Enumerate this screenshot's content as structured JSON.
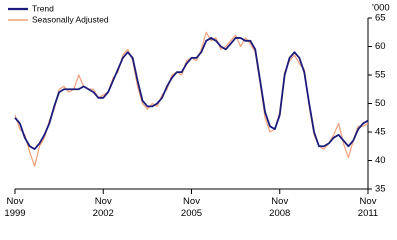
{
  "chart_data": {
    "type": "line",
    "unit_label": "'000",
    "x": [
      "1999-11",
      "2000-01",
      "2000-03",
      "2000-05",
      "2000-07",
      "2000-09",
      "2000-11",
      "2001-01",
      "2001-03",
      "2001-05",
      "2001-07",
      "2001-09",
      "2001-11",
      "2002-01",
      "2002-03",
      "2002-05",
      "2002-07",
      "2002-09",
      "2002-11",
      "2003-01",
      "2003-03",
      "2003-05",
      "2003-07",
      "2003-09",
      "2003-11",
      "2004-01",
      "2004-03",
      "2004-05",
      "2004-07",
      "2004-09",
      "2004-11",
      "2005-01",
      "2005-03",
      "2005-05",
      "2005-07",
      "2005-09",
      "2005-11",
      "2006-01",
      "2006-03",
      "2006-05",
      "2006-07",
      "2006-09",
      "2006-11",
      "2007-01",
      "2007-03",
      "2007-05",
      "2007-07",
      "2007-09",
      "2007-11",
      "2008-01",
      "2008-03",
      "2008-05",
      "2008-07",
      "2008-09",
      "2008-11",
      "2009-01",
      "2009-03",
      "2009-05",
      "2009-07",
      "2009-09",
      "2009-11",
      "2010-01",
      "2010-03",
      "2010-05",
      "2010-07",
      "2010-09",
      "2010-11",
      "2011-01",
      "2011-03",
      "2011-05",
      "2011-07",
      "2011-09",
      "2011-11"
    ],
    "series": [
      {
        "name": "Trend",
        "color": "#1c1c7c",
        "width": 1.8,
        "values": [
          47.5,
          46.5,
          44,
          42.5,
          42,
          43,
          44.5,
          46.5,
          49.5,
          52,
          52.5,
          52.5,
          52.5,
          52.5,
          53,
          52.5,
          52,
          51,
          51,
          52,
          54,
          56,
          58,
          59,
          58,
          54,
          50.5,
          49.5,
          49.5,
          50,
          51,
          53,
          54.5,
          55.5,
          55.5,
          57,
          58,
          58,
          59,
          61,
          61.5,
          61,
          60,
          59.5,
          60.5,
          61.5,
          61.5,
          61,
          61,
          59.5,
          54,
          48.5,
          46,
          45.5,
          48,
          55,
          58,
          59,
          58,
          55.5,
          50,
          45,
          42.5,
          42.5,
          43,
          44,
          44.5,
          43.5,
          42.5,
          43.5,
          45.5,
          46.5,
          47
        ]
      },
      {
        "name": "Seasonally Adjusted",
        "color": "#f4a07a",
        "width": 1.2,
        "values": [
          48,
          45.5,
          44.5,
          41.5,
          39,
          42.5,
          44,
          47,
          49,
          52.5,
          53,
          52,
          52.5,
          55,
          53,
          52.5,
          52.5,
          51,
          51.5,
          52,
          54.5,
          55.5,
          58.5,
          59.5,
          57.5,
          53,
          50,
          49,
          50,
          49.5,
          51.5,
          52.5,
          55,
          55.5,
          55,
          57.5,
          58,
          57.5,
          59.5,
          62.5,
          61,
          61.5,
          59.5,
          60,
          61,
          62,
          60,
          61.5,
          60.5,
          59,
          53.5,
          47.5,
          45,
          45.5,
          48.5,
          55.5,
          57.5,
          58.5,
          57,
          56,
          49.5,
          44.5,
          42.5,
          42,
          43,
          44.5,
          46.5,
          43,
          40.5,
          43.5,
          46,
          46,
          46.5
        ]
      }
    ],
    "xlim": [
      "1999-11",
      "2011-11"
    ],
    "xticks": [
      {
        "value": "1999-11",
        "label": "Nov 1999"
      },
      {
        "value": "2002-11",
        "label": "Nov 2002"
      },
      {
        "value": "2005-11",
        "label": "Nov 2005"
      },
      {
        "value": "2008-11",
        "label": "Nov 2008"
      },
      {
        "value": "2011-11",
        "label": "Nov 2011"
      }
    ],
    "ylim": [
      35,
      65
    ],
    "yticks": [
      35,
      40,
      45,
      50,
      55,
      60,
      65
    ],
    "legend": "top-left"
  }
}
